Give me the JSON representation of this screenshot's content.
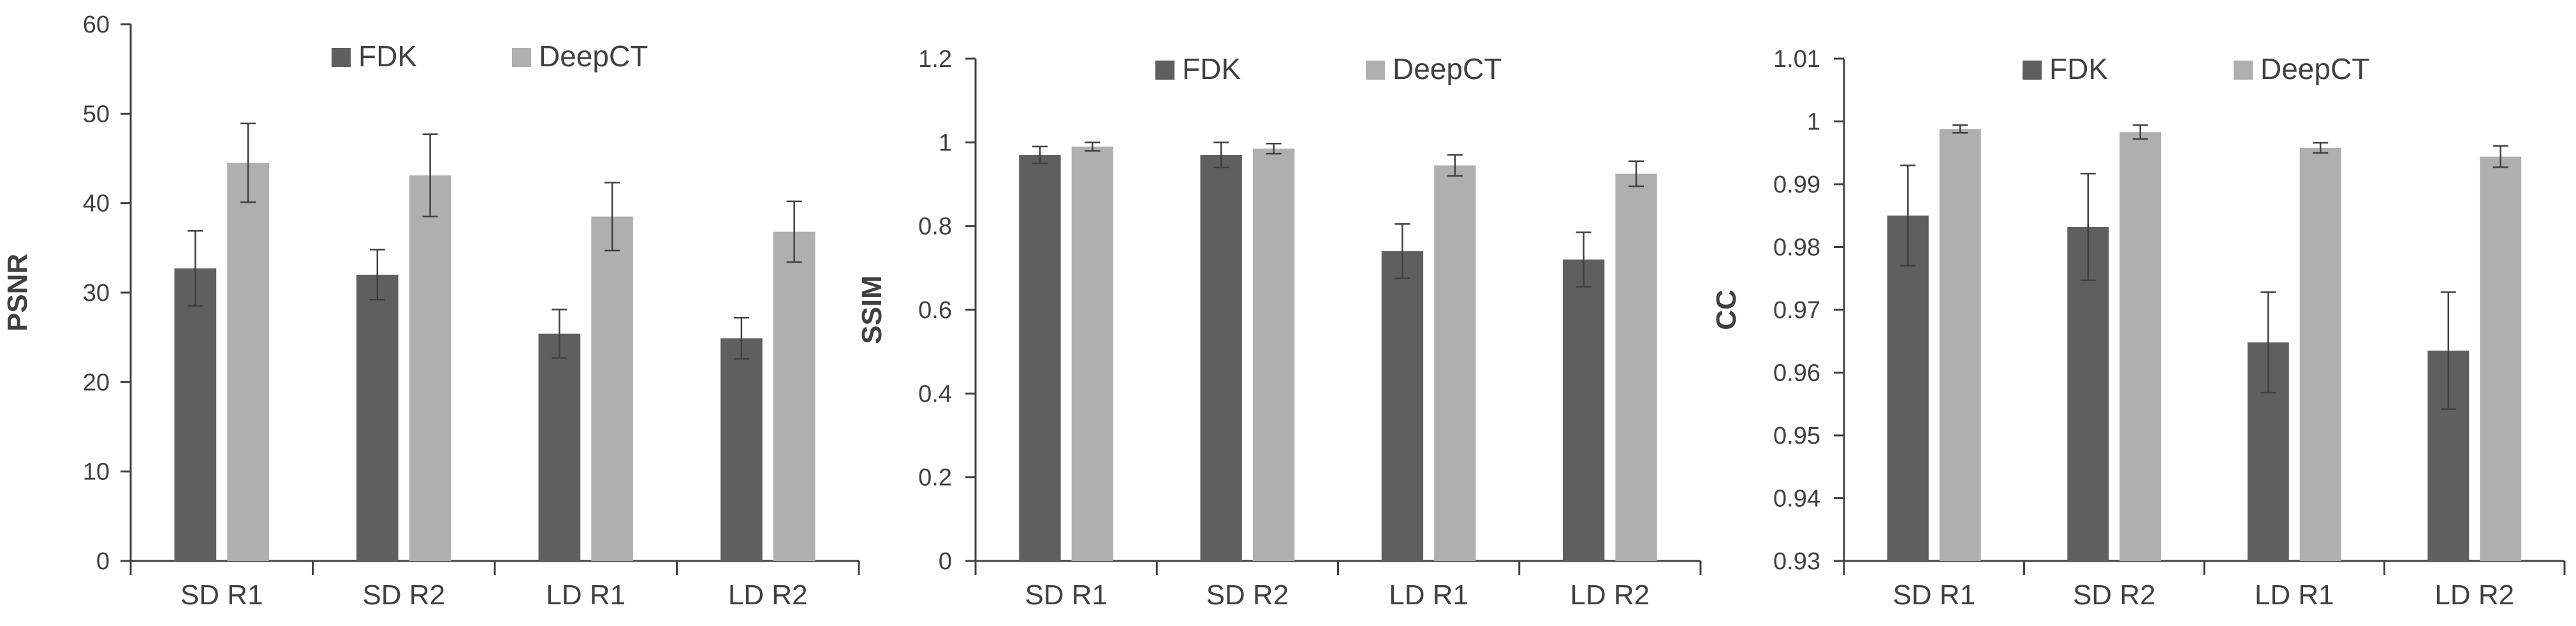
{
  "colors": {
    "fdk": "#5f5f5f",
    "deepct": "#afafaf",
    "axis": "#404040",
    "text": "#404040"
  },
  "chart_data": [
    {
      "type": "bar",
      "title": "",
      "xlabel": "",
      "ylabel": "PSNR",
      "categories": [
        "SD R1",
        "SD R2",
        "LD R1",
        "LD R2"
      ],
      "ylim": [
        0,
        60
      ],
      "yticks": [
        0,
        10,
        20,
        30,
        40,
        50,
        60
      ],
      "tick_labels": [
        "0",
        "10",
        "20",
        "30",
        "40",
        "50",
        "60"
      ],
      "grid": false,
      "legend": "top-center",
      "series": [
        {
          "name": "FDK",
          "values": [
            32.7,
            32.0,
            25.4,
            24.9
          ],
          "error": [
            4.2,
            2.8,
            2.7,
            2.3
          ]
        },
        {
          "name": "DeepCT",
          "values": [
            44.5,
            43.1,
            38.5,
            36.8
          ],
          "error": [
            4.4,
            4.6,
            3.8,
            3.4
          ]
        }
      ]
    },
    {
      "type": "bar",
      "title": "",
      "xlabel": "",
      "ylabel": "SSIM",
      "categories": [
        "SD R1",
        "SD R2",
        "LD R1",
        "LD R2"
      ],
      "ylim": [
        0,
        1.2
      ],
      "yticks": [
        0,
        0.2,
        0.4,
        0.6,
        0.8,
        1,
        1.2
      ],
      "tick_labels": [
        "0",
        "0.2",
        "0.4",
        "0.6",
        "0.8",
        "1",
        "1.2"
      ],
      "grid": false,
      "legend": "top-center",
      "series": [
        {
          "name": "FDK",
          "values": [
            0.97,
            0.97,
            0.74,
            0.72
          ],
          "error": [
            0.02,
            0.03,
            0.065,
            0.065
          ]
        },
        {
          "name": "DeepCT",
          "values": [
            0.99,
            0.985,
            0.945,
            0.925
          ],
          "error": [
            0.01,
            0.012,
            0.025,
            0.03
          ]
        }
      ]
    },
    {
      "type": "bar",
      "title": "",
      "xlabel": "",
      "ylabel": "CC",
      "categories": [
        "SD R1",
        "SD R2",
        "LD R1",
        "LD R2"
      ],
      "ylim": [
        0.93,
        1.01
      ],
      "yticks": [
        0.93,
        0.94,
        0.95,
        0.96,
        0.97,
        0.98,
        0.99,
        1,
        1.01
      ],
      "tick_labels": [
        "0.93",
        "0.94",
        "0.95",
        "0.96",
        "0.97",
        "0.98",
        "0.99",
        "1",
        "1.01"
      ],
      "grid": false,
      "legend": "top-center",
      "series": [
        {
          "name": "FDK",
          "values": [
            0.985,
            0.9832,
            0.9648,
            0.9635
          ],
          "error": [
            0.008,
            0.0085,
            0.008,
            0.0093
          ]
        },
        {
          "name": "DeepCT",
          "values": [
            0.9988,
            0.9983,
            0.9958,
            0.9944
          ],
          "error": [
            0.0006,
            0.0011,
            0.0008,
            0.0017
          ]
        }
      ]
    }
  ]
}
